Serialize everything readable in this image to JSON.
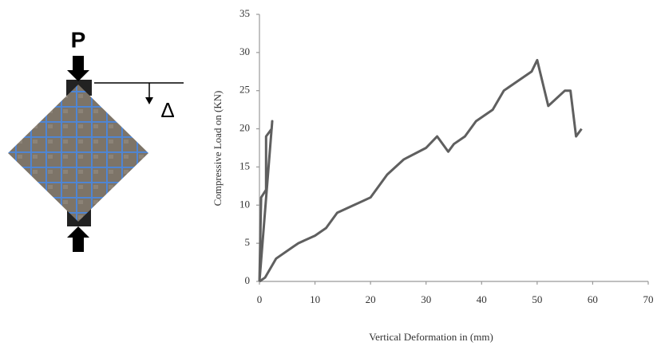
{
  "chart_data": {
    "type": "line",
    "x_label": "Vertical Deformation in (mm)",
    "y_label": "Compressive Load on (KN)",
    "series": [
      {
        "color": "#5f5f5f",
        "x": [
          0,
          0.3,
          1.2,
          1.2,
          2.2,
          2.3,
          0
        ],
        "values": [
          0,
          11,
          12,
          19,
          20,
          21,
          0
        ]
      },
      {
        "color": "#5f5f5f",
        "x": [
          0,
          1,
          3,
          6,
          7,
          10,
          12,
          14,
          17,
          20,
          23,
          26,
          30,
          32,
          34,
          35,
          37,
          39,
          42,
          44,
          46,
          49,
          50,
          52,
          55,
          56,
          57,
          58
        ],
        "values": [
          0,
          0.5,
          3,
          4.5,
          5,
          6,
          7,
          9,
          10,
          11,
          14,
          16,
          17.5,
          19,
          17,
          18,
          19,
          21,
          22.5,
          25,
          26,
          27.5,
          29,
          23,
          25,
          25,
          19,
          20
        ]
      }
    ],
    "xlim": [
      0,
      70
    ],
    "xticks": [
      0,
      10,
      20,
      30,
      40,
      50,
      60,
      70
    ],
    "ylim": [
      0,
      35
    ],
    "yticks": [
      0,
      5,
      10,
      15,
      20,
      25,
      30,
      35
    ],
    "grid": false
  },
  "diagram": {
    "load_label": "P",
    "deflection_label": "Δ"
  }
}
